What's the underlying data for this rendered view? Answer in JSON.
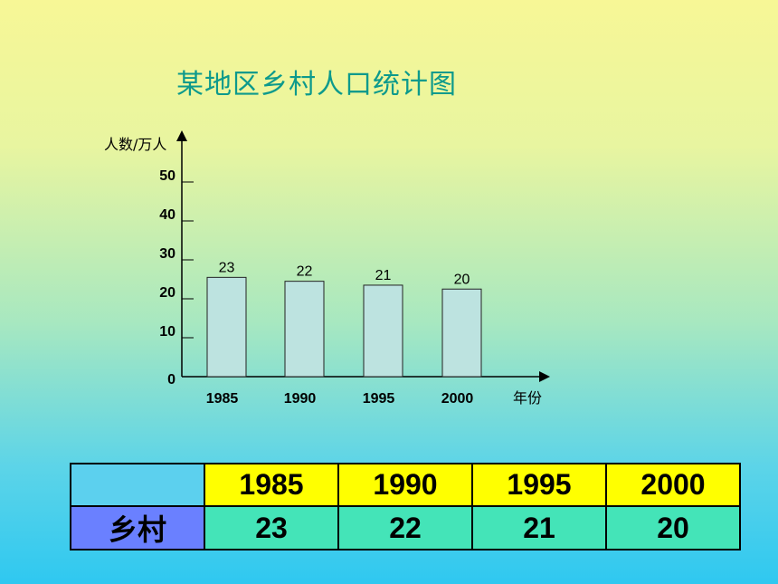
{
  "title": "某地区乡村人口统计图",
  "chart_data": {
    "type": "bar",
    "title": "某地区乡村人口统计图",
    "ylabel": "人数/万人",
    "xlabel": "年份",
    "categories": [
      "1985",
      "1990",
      "1995",
      "2000"
    ],
    "values": [
      23,
      22,
      21,
      20
    ],
    "data_labels": [
      "23",
      "22",
      "21",
      "20"
    ],
    "y_ticks": [
      0,
      10,
      20,
      30,
      40,
      50
    ],
    "ylim": [
      0,
      50
    ],
    "grid": false
  },
  "table": {
    "corner": "",
    "years": [
      "1985",
      "1990",
      "1995",
      "2000"
    ],
    "row_label": "乡村",
    "values": [
      "23",
      "22",
      "21",
      "20"
    ]
  },
  "colors": {
    "title": "#0d9a8c",
    "bar_fill": "#bde3e0",
    "year_cell": "#ffff00",
    "value_cell": "#44e4b8",
    "row_label_cell": "#6a80ff"
  }
}
